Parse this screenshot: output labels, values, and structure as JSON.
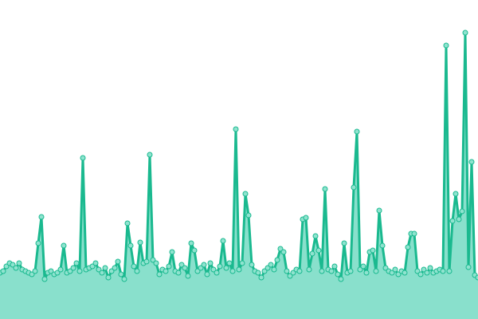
{
  "chart_data": {
    "type": "area",
    "color": "#1ab98f",
    "fill_color": "#89e0cc",
    "marker_color": "#8fe3cf",
    "markers": true,
    "ylim": [
      0,
      400
    ],
    "values": [
      58,
      60,
      66,
      70,
      68,
      64,
      70,
      62,
      60,
      58,
      56,
      60,
      95,
      128,
      50,
      58,
      60,
      56,
      58,
      62,
      92,
      58,
      60,
      64,
      70,
      60,
      202,
      62,
      64,
      66,
      70,
      62,
      58,
      64,
      52,
      60,
      64,
      72,
      56,
      50,
      120,
      92,
      66,
      60,
      96,
      70,
      72,
      206,
      74,
      70,
      56,
      62,
      60,
      66,
      84,
      60,
      58,
      68,
      64,
      54,
      95,
      86,
      60,
      64,
      68,
      56,
      70,
      62,
      58,
      66,
      98,
      64,
      70,
      60,
      238,
      62,
      70,
      157,
      130,
      68,
      60,
      58,
      52,
      60,
      64,
      68,
      62,
      74,
      88,
      84,
      60,
      54,
      58,
      62,
      60,
      125,
      127,
      62,
      82,
      104,
      86,
      60,
      163,
      62,
      60,
      66,
      56,
      50,
      95,
      58,
      60,
      165,
      235,
      62,
      66,
      58,
      84,
      86,
      60,
      136,
      92,
      64,
      60,
      58,
      62,
      56,
      60,
      58,
      90,
      107,
      107,
      60,
      56,
      62,
      58,
      64,
      58,
      60,
      62,
      60,
      343,
      60,
      123,
      157,
      125,
      135,
      359,
      65,
      197,
      55,
      52
    ]
  }
}
